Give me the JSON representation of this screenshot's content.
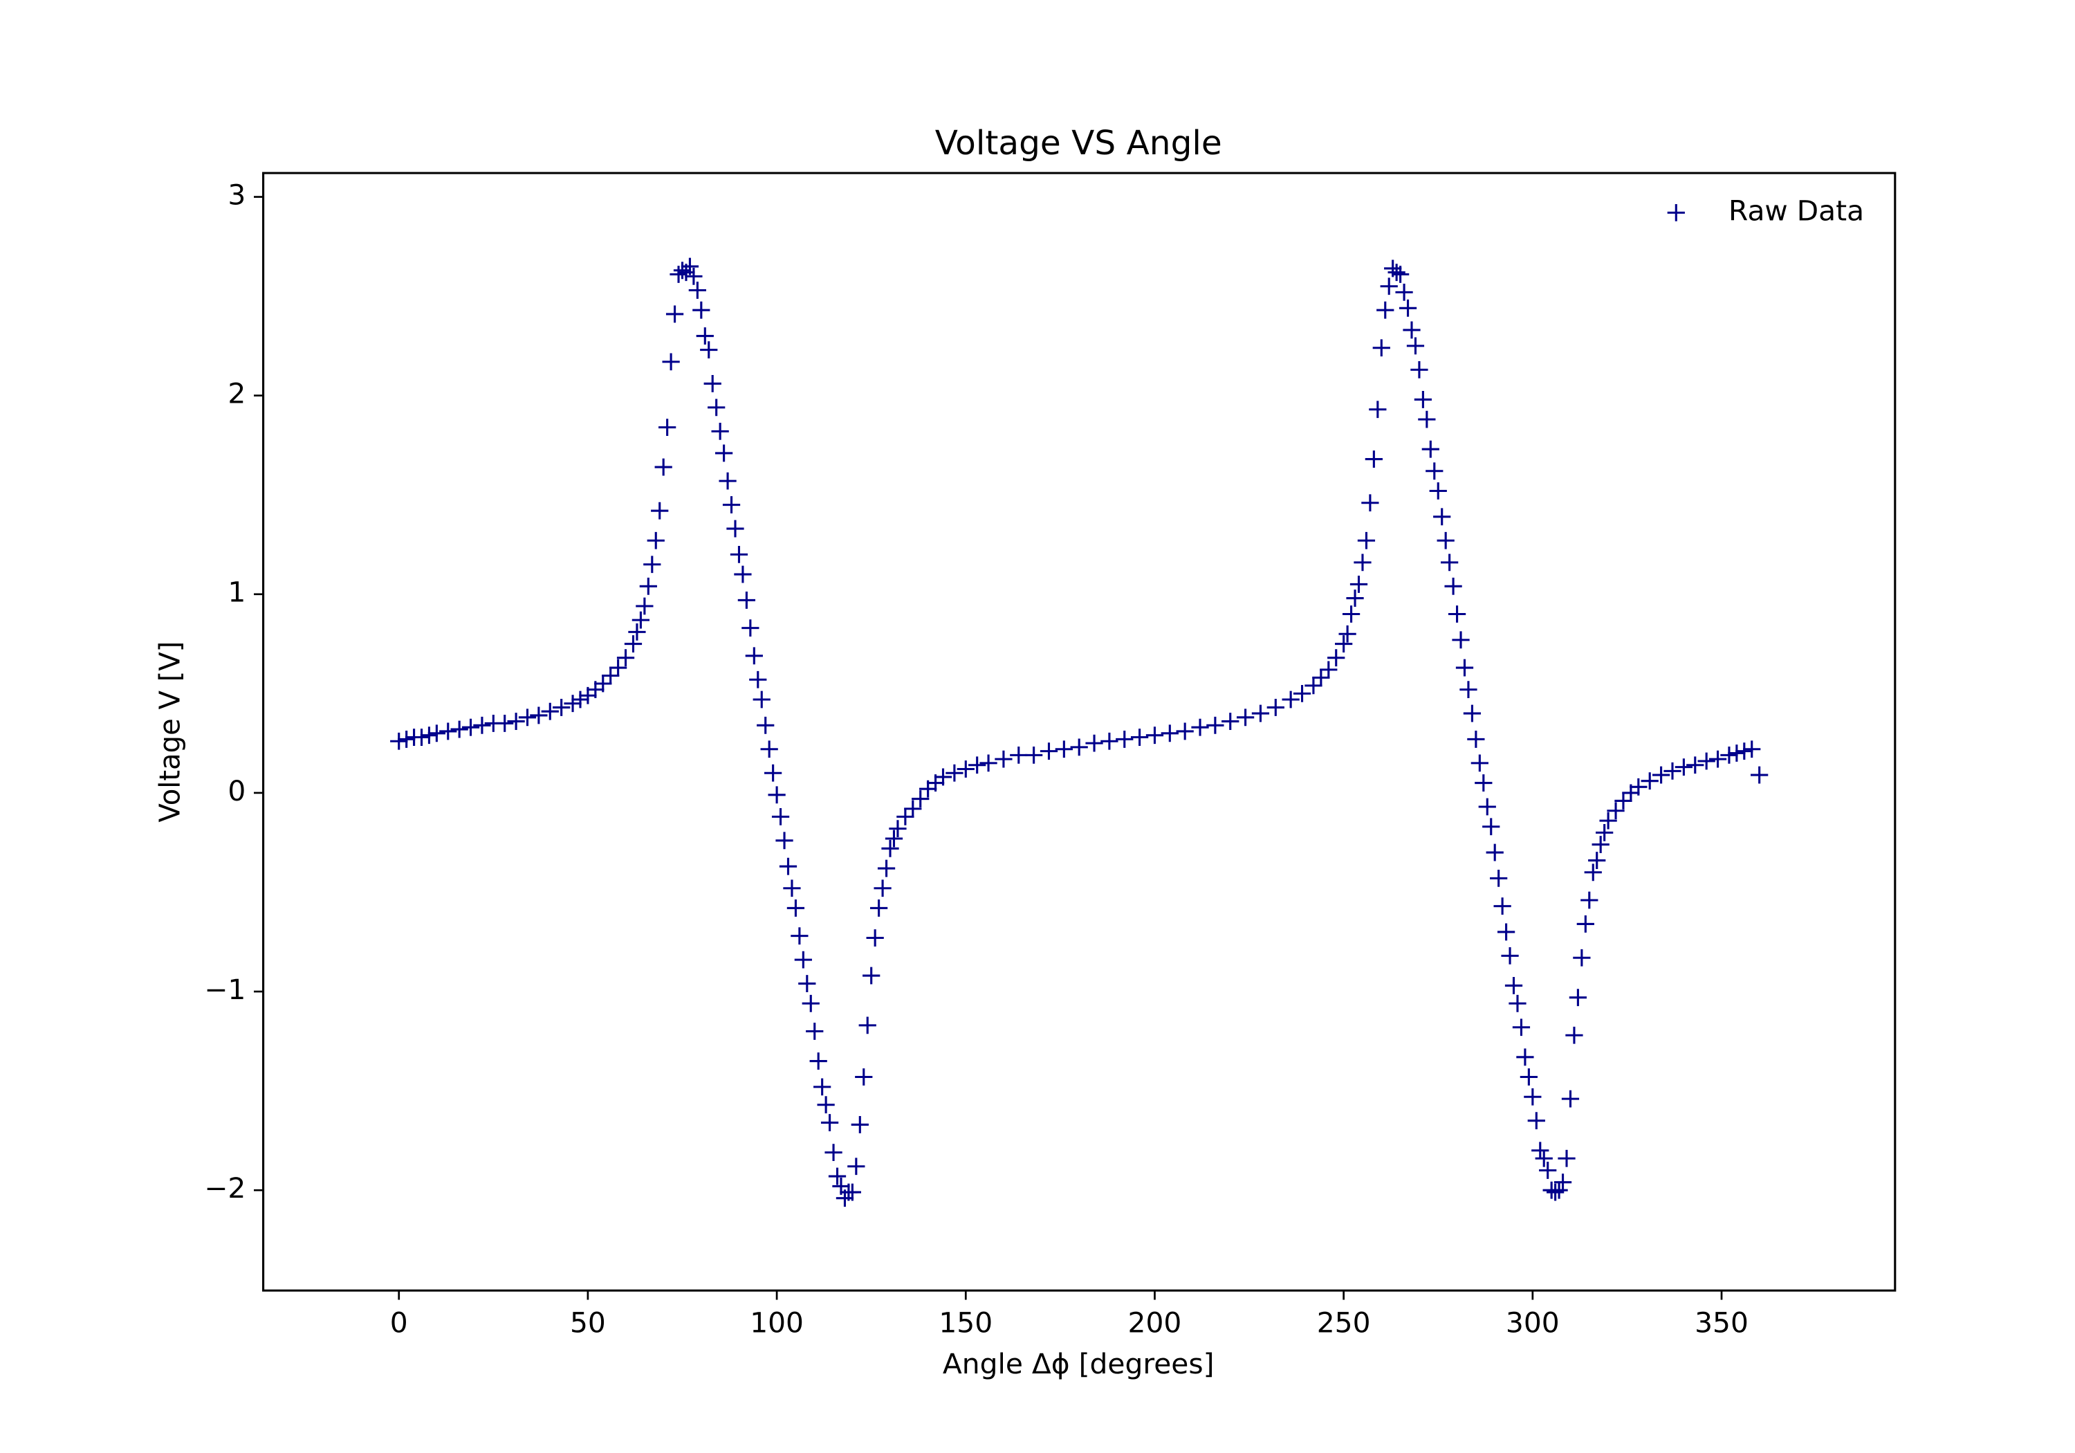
{
  "chart_data": {
    "type": "scatter",
    "title": "Voltage VS Angle",
    "xlabel": "Angle Δϕ [degrees]",
    "ylabel": "Voltage V [V]",
    "xlim": [
      -35.9,
      395.9
    ],
    "ylim": [
      -2.505,
      3.12
    ],
    "xticks": [
      0,
      50,
      100,
      150,
      200,
      250,
      300,
      350
    ],
    "yticks": [
      {
        "value": -2,
        "label": "−2"
      },
      {
        "value": -1,
        "label": "−1"
      },
      0,
      1,
      2,
      3
    ],
    "legend": "upper right",
    "marker": "+",
    "x": [
      0,
      2,
      4,
      6,
      8,
      10,
      13,
      16,
      19,
      22,
      25,
      28,
      31,
      34,
      37,
      40,
      43,
      46,
      48,
      50,
      52,
      54,
      56,
      58,
      60,
      62,
      63,
      64,
      65,
      66,
      67,
      68,
      69,
      70,
      71,
      72,
      73,
      74,
      75,
      76,
      77,
      78,
      79,
      80,
      81,
      82,
      83,
      84,
      85,
      86,
      87,
      88,
      89,
      90,
      91,
      92,
      93,
      94,
      95,
      96,
      97,
      98,
      99,
      100,
      101,
      102,
      103,
      104,
      105,
      106,
      107,
      108,
      109,
      110,
      111,
      112,
      113,
      114,
      115,
      116,
      117,
      118,
      119,
      120,
      121,
      122,
      123,
      124,
      125,
      126,
      127,
      128,
      129,
      130,
      131,
      132,
      134,
      136,
      138,
      140,
      142,
      144,
      147,
      150,
      153,
      156,
      160,
      164,
      168,
      172,
      176,
      180,
      184,
      188,
      192,
      196,
      200,
      204,
      208,
      212,
      216,
      220,
      224,
      228,
      232,
      236,
      239,
      242,
      244,
      246,
      248,
      250,
      251,
      252,
      253,
      254,
      255,
      256,
      257,
      258,
      259,
      260,
      261,
      262,
      263,
      264,
      265,
      266,
      267,
      268,
      269,
      270,
      271,
      272,
      273,
      274,
      275,
      276,
      277,
      278,
      279,
      280,
      281,
      282,
      283,
      284,
      285,
      286,
      287,
      288,
      289,
      290,
      291,
      292,
      293,
      294,
      295,
      296,
      297,
      298,
      299,
      300,
      301,
      302,
      303,
      304,
      305,
      306,
      307,
      308,
      309,
      310,
      311,
      312,
      313,
      314,
      315,
      316,
      317,
      318,
      319,
      320,
      322,
      324,
      326,
      328,
      331,
      334,
      337,
      340,
      343,
      346,
      349,
      352,
      354,
      356,
      358,
      360
    ],
    "series": [
      {
        "name": "Raw Data",
        "color": "#00008b",
        "values": [
          0.26,
          0.27,
          0.28,
          0.28,
          0.29,
          0.3,
          0.31,
          0.32,
          0.33,
          0.34,
          0.35,
          0.35,
          0.36,
          0.38,
          0.39,
          0.41,
          0.43,
          0.45,
          0.47,
          0.49,
          0.52,
          0.55,
          0.59,
          0.63,
          0.68,
          0.75,
          0.81,
          0.87,
          0.94,
          1.04,
          1.15,
          1.27,
          1.42,
          1.64,
          1.84,
          2.17,
          2.41,
          2.61,
          2.63,
          2.62,
          2.65,
          2.6,
          2.53,
          2.43,
          2.3,
          2.23,
          2.06,
          1.94,
          1.82,
          1.71,
          1.57,
          1.45,
          1.33,
          1.2,
          1.1,
          0.97,
          0.83,
          0.69,
          0.57,
          0.47,
          0.34,
          0.22,
          0.1,
          -0.01,
          -0.12,
          -0.24,
          -0.37,
          -0.48,
          -0.58,
          -0.72,
          -0.84,
          -0.96,
          -1.06,
          -1.2,
          -1.35,
          -1.48,
          -1.57,
          -1.66,
          -1.81,
          -1.93,
          -1.98,
          -2.04,
          -2.01,
          -2.01,
          -1.88,
          -1.67,
          -1.43,
          -1.17,
          -0.92,
          -0.73,
          -0.58,
          -0.48,
          -0.38,
          -0.28,
          -0.23,
          -0.18,
          -0.12,
          -0.08,
          -0.03,
          0.02,
          0.05,
          0.08,
          0.1,
          0.12,
          0.14,
          0.15,
          0.17,
          0.19,
          0.19,
          0.21,
          0.22,
          0.23,
          0.25,
          0.26,
          0.27,
          0.28,
          0.29,
          0.3,
          0.31,
          0.33,
          0.34,
          0.36,
          0.38,
          0.4,
          0.43,
          0.47,
          0.5,
          0.54,
          0.58,
          0.62,
          0.68,
          0.75,
          0.8,
          0.9,
          0.98,
          1.05,
          1.16,
          1.27,
          1.46,
          1.68,
          1.93,
          2.24,
          2.43,
          2.55,
          2.64,
          2.62,
          2.61,
          2.52,
          2.44,
          2.33,
          2.25,
          2.13,
          1.98,
          1.88,
          1.73,
          1.62,
          1.52,
          1.39,
          1.27,
          1.16,
          1.04,
          0.9,
          0.77,
          0.63,
          0.52,
          0.4,
          0.27,
          0.15,
          0.05,
          -0.07,
          -0.17,
          -0.3,
          -0.43,
          -0.57,
          -0.7,
          -0.82,
          -0.97,
          -1.06,
          -1.18,
          -1.33,
          -1.43,
          -1.53,
          -1.65,
          -1.8,
          -1.84,
          -1.9,
          -2.0,
          -2.01,
          -2.0,
          -1.96,
          -1.84,
          -1.54,
          -1.22,
          -1.03,
          -0.83,
          -0.66,
          -0.54,
          -0.4,
          -0.34,
          -0.26,
          -0.2,
          -0.14,
          -0.09,
          -0.04,
          0.0,
          0.03,
          0.06,
          0.09,
          0.11,
          0.13,
          0.14,
          0.16,
          0.17,
          0.19,
          0.2,
          0.21,
          0.22,
          0.09
        ]
      }
    ]
  }
}
